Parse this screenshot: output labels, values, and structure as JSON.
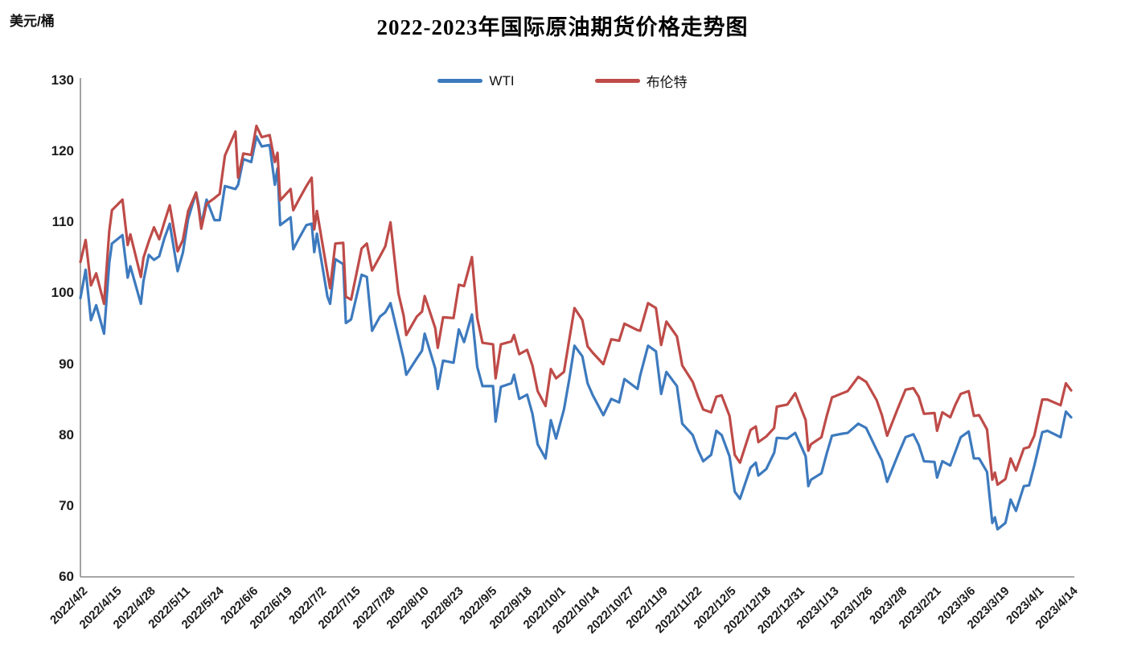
{
  "chart_data": {
    "type": "line",
    "title": "2022-2023年国际原油期货价格走势图",
    "unit_label": "美元/桶",
    "legend_position": "top-center",
    "grid": false,
    "y_axis": {
      "min": 60,
      "max": 130,
      "step": 10,
      "ticks": [
        130,
        120,
        110,
        100,
        90,
        80,
        70,
        60
      ]
    },
    "x_ticks": [
      "2022/4/2",
      "2022/4/15",
      "2022/4/28",
      "2022/5/11",
      "2022/5/24",
      "2022/6/6",
      "2022/6/19",
      "2022/7/2",
      "2022/7/15",
      "2022/7/28",
      "2022/8/10",
      "2022/8/23",
      "2022/9/5",
      "2022/9/18",
      "2022/10/1",
      "2022/10/14",
      "2022/10/27",
      "2022/11/9",
      "2022/11/22",
      "2022/12/5",
      "2022/12/18",
      "2022/12/31",
      "2023/1/13",
      "2023/1/26",
      "2023/2/8",
      "2023/2/21",
      "2023/3/6",
      "2023/3/19",
      "2023/4/1",
      "2023/4/14"
    ],
    "x_tick_interval_days": 13,
    "days": [
      0,
      2,
      4,
      6,
      9,
      11,
      12,
      16,
      18,
      19,
      23,
      24,
      26,
      28,
      30,
      32,
      34,
      37,
      39,
      41,
      44,
      45,
      46,
      48,
      51,
      53,
      55,
      59,
      60,
      62,
      65,
      67,
      69,
      72,
      74,
      75,
      76,
      80,
      81,
      83,
      86,
      88,
      89,
      90,
      94,
      95,
      97,
      100,
      101,
      103,
      107,
      109,
      111,
      114,
      116,
      118,
      121,
      123,
      124,
      128,
      130,
      131,
      135,
      136,
      138,
      142,
      144,
      146,
      149,
      151,
      153,
      157,
      158,
      160,
      164,
      165,
      167,
      170,
      172,
      174,
      177,
      179,
      181,
      184,
      186,
      188,
      191,
      193,
      195,
      199,
      202,
      205,
      207,
      212,
      213,
      216,
      219,
      221,
      223,
      227,
      229,
      233,
      235,
      237,
      240,
      242,
      244,
      247,
      249,
      251,
      255,
      257,
      258,
      261,
      264,
      265,
      269,
      272,
      276,
      277,
      278,
      282,
      284,
      286,
      290,
      292,
      296,
      299,
      303,
      305,
      307,
      311,
      314,
      317,
      319,
      321,
      325,
      326,
      328,
      331,
      333,
      335,
      338,
      340,
      342,
      345,
      347,
      348,
      349,
      352,
      354,
      356,
      359,
      361,
      363,
      366,
      368,
      373,
      375,
      377
    ],
    "series": [
      {
        "name": "WTI",
        "color": "#3d7abe",
        "values": [
          99.3,
          103.3,
          96.2,
          98.3,
          94.3,
          104.3,
          107.0,
          108.2,
          102.2,
          103.8,
          98.5,
          101.7,
          105.4,
          104.7,
          105.2,
          107.8,
          109.8,
          103.1,
          105.7,
          110.5,
          114.2,
          112.4,
          109.6,
          113.2,
          110.3,
          110.3,
          115.1,
          114.7,
          115.3,
          118.9,
          118.5,
          122.1,
          120.7,
          120.9,
          115.3,
          117.6,
          109.6,
          110.7,
          106.2,
          107.6,
          109.6,
          109.8,
          105.8,
          108.4,
          99.5,
          98.5,
          104.8,
          104.1,
          95.8,
          96.3,
          102.6,
          102.3,
          94.7,
          96.7,
          97.3,
          98.6,
          93.9,
          90.7,
          88.5,
          90.8,
          91.9,
          94.3,
          89.4,
          86.5,
          90.5,
          90.2,
          94.9,
          93.1,
          97.0,
          89.6,
          86.9,
          86.9,
          81.9,
          86.8,
          87.3,
          88.5,
          85.1,
          85.7,
          83.0,
          78.7,
          76.7,
          82.1,
          79.5,
          83.6,
          87.8,
          92.6,
          91.1,
          87.3,
          85.6,
          82.8,
          85.1,
          84.6,
          87.9,
          86.5,
          88.4,
          92.6,
          91.8,
          85.8,
          88.9,
          86.9,
          81.6,
          80.0,
          77.9,
          76.3,
          77.2,
          80.6,
          80.0,
          77.0,
          72.0,
          71.0,
          75.4,
          76.1,
          74.3,
          75.2,
          77.5,
          79.6,
          79.5,
          80.3,
          77.0,
          72.8,
          73.7,
          74.6,
          77.4,
          79.9,
          80.2,
          80.3,
          81.6,
          81.0,
          77.9,
          76.4,
          73.4,
          77.1,
          79.7,
          80.1,
          78.6,
          76.3,
          76.2,
          74.0,
          76.3,
          75.7,
          77.7,
          79.7,
          80.5,
          76.7,
          76.7,
          74.8,
          67.6,
          68.4,
          66.7,
          67.6,
          70.9,
          69.3,
          72.8,
          72.9,
          75.7,
          80.4,
          80.6,
          79.7,
          83.3,
          82.5
        ]
      },
      {
        "name": "布伦特",
        "color": "#be4b48",
        "values": [
          104.4,
          107.5,
          101.1,
          102.8,
          98.5,
          108.8,
          111.7,
          113.2,
          106.8,
          108.3,
          102.3,
          105.0,
          107.3,
          109.3,
          107.6,
          110.1,
          112.4,
          105.9,
          107.5,
          111.6,
          114.2,
          111.9,
          109.1,
          112.6,
          113.4,
          114.0,
          119.4,
          122.8,
          116.3,
          119.7,
          119.5,
          123.6,
          122.0,
          122.3,
          118.5,
          119.8,
          113.1,
          114.7,
          111.7,
          113.1,
          115.1,
          116.3,
          109.0,
          111.6,
          102.8,
          100.7,
          107.0,
          107.1,
          99.5,
          99.1,
          106.3,
          107.0,
          103.2,
          105.2,
          106.6,
          110.0,
          100.0,
          96.8,
          94.1,
          96.7,
          97.4,
          99.6,
          95.1,
          92.3,
          96.6,
          96.5,
          101.2,
          101.0,
          105.1,
          96.5,
          93.0,
          92.8,
          88.0,
          92.8,
          93.2,
          94.1,
          91.4,
          92.0,
          89.8,
          86.2,
          84.1,
          89.3,
          88.0,
          88.9,
          93.4,
          97.9,
          96.2,
          92.5,
          91.6,
          90.0,
          93.5,
          93.3,
          95.7,
          94.8,
          94.7,
          98.6,
          97.9,
          92.7,
          96.0,
          93.9,
          89.8,
          87.5,
          85.4,
          83.6,
          83.2,
          85.4,
          85.6,
          82.7,
          77.2,
          76.1,
          80.7,
          81.2,
          79.0,
          79.8,
          81.0,
          84.0,
          84.3,
          85.9,
          82.1,
          77.8,
          78.7,
          79.7,
          82.7,
          85.3,
          85.9,
          86.2,
          88.2,
          87.5,
          84.9,
          82.8,
          79.9,
          83.7,
          86.4,
          86.6,
          85.4,
          83.0,
          83.1,
          80.6,
          83.2,
          82.5,
          84.3,
          85.8,
          86.2,
          82.7,
          82.8,
          80.8,
          73.7,
          74.7,
          73.0,
          73.8,
          76.7,
          75.0,
          78.1,
          78.3,
          79.9,
          85.0,
          85.0,
          84.2,
          87.3,
          86.3
        ]
      }
    ],
    "axis_color": "#8a8a8a",
    "background_color": "#ffffff"
  }
}
